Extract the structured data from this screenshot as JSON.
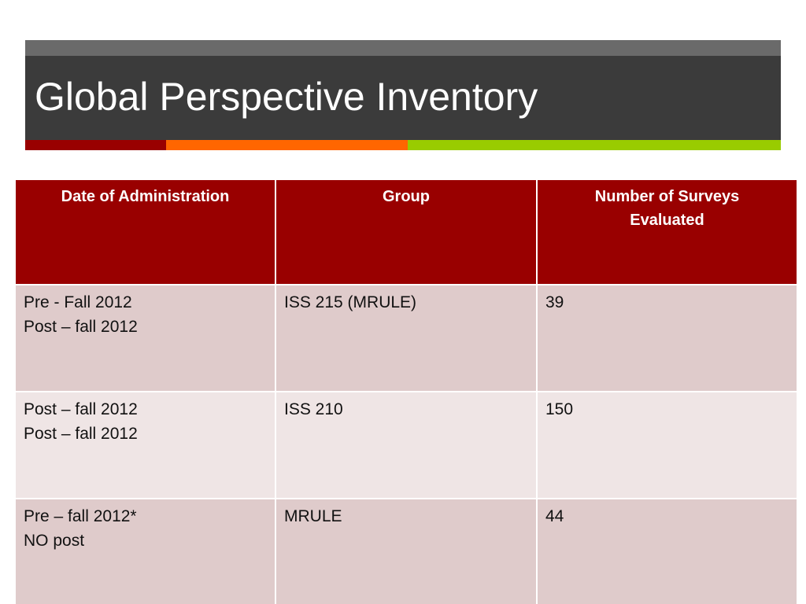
{
  "slide": {
    "title": "Global Perspective Inventory"
  },
  "theme": {
    "title_bg": "#3b3b3b",
    "title_strip": "#6a6a6a",
    "header_bg": "#990000",
    "row_odd_bg": "#dfcbcb",
    "row_even_bg": "#efe5e5",
    "accent_colors": [
      "#990000",
      "#ff6600",
      "#99cc00"
    ]
  },
  "table": {
    "headers": [
      "Date of Administration",
      "Group",
      "Number of Surveys Evaluated"
    ],
    "header_lines": [
      [
        "Date of Administration"
      ],
      [
        "Group"
      ],
      [
        "Number of Surveys",
        "Evaluated"
      ]
    ],
    "rows": [
      {
        "date_lines": [
          "Pre - Fall 2012",
          "Post – fall 2012"
        ],
        "group": "ISS 215 (MRULE)",
        "surveys": "39"
      },
      {
        "date_lines": [
          "Post – fall 2012",
          "Post – fall 2012"
        ],
        "group": "ISS 210",
        "surveys": "150"
      },
      {
        "date_lines": [
          "Pre – fall 2012*",
          "NO post"
        ],
        "group": "MRULE",
        "surveys": "44"
      }
    ]
  }
}
